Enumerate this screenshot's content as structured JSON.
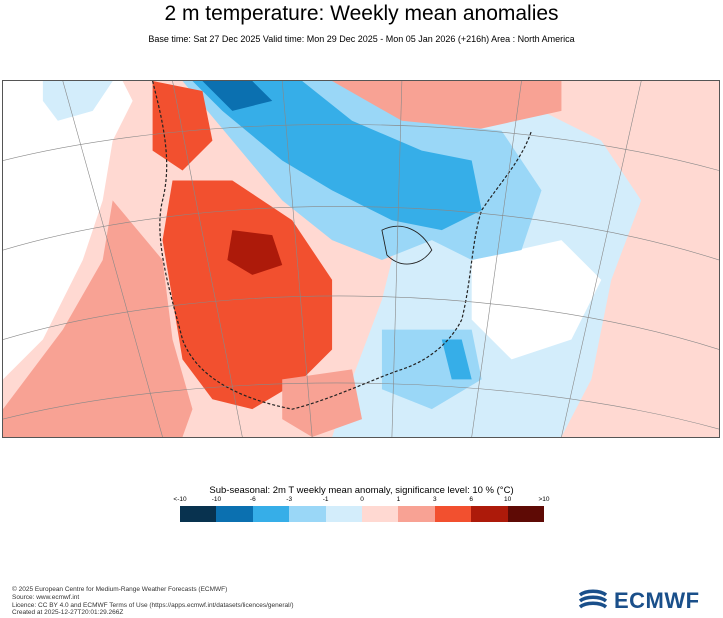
{
  "title": "2 m temperature: Weekly mean anomalies",
  "subtitle": "Base time: Sat 27 Dec 2025 Valid time: Mon 29 Dec 2025 - Mon 05 Jan 2026 (+216h) Area : North America",
  "legend": {
    "title": "Sub-seasonal: 2m T weekly mean anomaly, significance level: 10 % (°C)",
    "labels": [
      "<-10",
      "-10",
      "-6",
      "-3",
      "-1",
      "0",
      "1",
      "3",
      "6",
      "10",
      ">10"
    ],
    "colors": [
      "#08324f",
      "#0b70b0",
      "#36aee8",
      "#9ad7f7",
      "#d3edfb",
      "#ffd9d2",
      "#f8a294",
      "#f2502f",
      "#ad1a0a",
      "#5e0a05"
    ]
  },
  "credits": [
    "© 2025 European Centre for Medium-Range Weather Forecasts (ECMWF)",
    "Source: www.ecmwf.int",
    "Licence: CC BY 4.0 and ECMWF Terms of Use (https://apps.ecmwf.int/datasets/licences/general/)",
    "Created at 2025-12-27T20:01:29.266Z"
  ],
  "logo": {
    "text": "ECMWF"
  },
  "colors": {
    "warm": "#f2502f",
    "cold": "#36aee8",
    "background": "#ffffff"
  }
}
